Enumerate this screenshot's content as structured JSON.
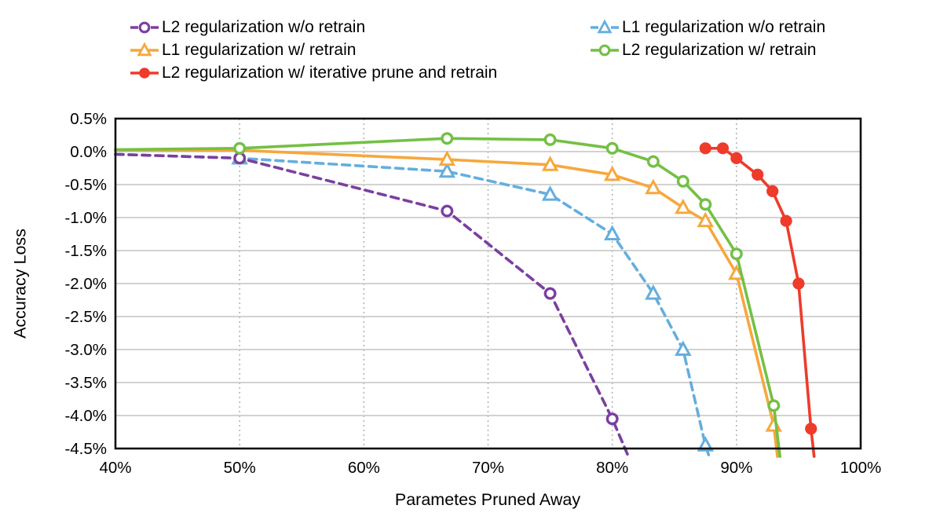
{
  "chart_data": {
    "type": "line",
    "title": "",
    "xlabel": "Parametes Pruned Away",
    "ylabel": "Accuracy Loss",
    "xlim": [
      40,
      100
    ],
    "ylim": [
      -4.5,
      0.5
    ],
    "x_ticks": [
      "40%",
      "50%",
      "60%",
      "70%",
      "80%",
      "90%",
      "100%"
    ],
    "x_tick_values": [
      40,
      50,
      60,
      70,
      80,
      90,
      100
    ],
    "y_ticks": [
      "0.5%",
      "0.0%",
      "-0.5%",
      "-1.0%",
      "-1.5%",
      "-2.0%",
      "-2.5%",
      "-3.0%",
      "-3.5%",
      "-4.0%",
      "-4.5%"
    ],
    "y_tick_values": [
      0.5,
      0.0,
      -0.5,
      -1.0,
      -1.5,
      -2.0,
      -2.5,
      -3.0,
      -3.5,
      -4.0,
      -4.5
    ],
    "grid": {
      "horizontal": "solid",
      "vertical": "dotted"
    },
    "legend_position": "top",
    "style": {
      "background": "#ffffff",
      "border_color": "#111111",
      "grid_color_horizontal": "#cbcbcb",
      "grid_color_vertical": "#b4b4b4",
      "text_color": "#000000"
    },
    "series": [
      {
        "name": "L2 regularization w/o retrain",
        "color": "#7b3fa0",
        "line_style": "dashed",
        "marker": "circle-open",
        "points": [
          [
            40,
            -0.04,
            0
          ],
          [
            50,
            -0.1,
            1
          ],
          [
            66.7,
            -0.9,
            1
          ],
          [
            75,
            -2.15,
            1
          ],
          [
            80,
            -4.05,
            1
          ],
          [
            81.3,
            -4.62,
            0
          ]
        ]
      },
      {
        "name": "L1 regularization w/o retrain",
        "color": "#64aede",
        "line_style": "dashed",
        "marker": "triangle-open",
        "points": [
          [
            40,
            -0.04,
            0
          ],
          [
            50,
            -0.1,
            1
          ],
          [
            66.7,
            -0.3,
            1
          ],
          [
            75,
            -0.65,
            1
          ],
          [
            80,
            -1.25,
            1
          ],
          [
            83.3,
            -2.15,
            1
          ],
          [
            85.7,
            -3.0,
            1
          ],
          [
            87.5,
            -4.45,
            1
          ],
          [
            87.8,
            -4.62,
            0
          ]
        ]
      },
      {
        "name": "L1 regularization w/ retrain",
        "color": "#f7a73c",
        "line_style": "solid",
        "marker": "triangle-open",
        "points": [
          [
            40,
            0.02,
            0
          ],
          [
            50,
            0.02,
            0
          ],
          [
            66.7,
            -0.12,
            1
          ],
          [
            75,
            -0.2,
            1
          ],
          [
            80,
            -0.35,
            1
          ],
          [
            83.3,
            -0.55,
            1
          ],
          [
            85.7,
            -0.85,
            1
          ],
          [
            87.5,
            -1.05,
            1
          ],
          [
            90,
            -1.85,
            1
          ],
          [
            93,
            -4.15,
            1
          ],
          [
            93.3,
            -4.62,
            0
          ]
        ]
      },
      {
        "name": "L2 regularization w/ retrain",
        "color": "#74c045",
        "line_style": "solid",
        "marker": "circle-open",
        "points": [
          [
            40,
            0.03,
            0
          ],
          [
            50,
            0.05,
            1
          ],
          [
            66.7,
            0.2,
            1
          ],
          [
            75,
            0.18,
            1
          ],
          [
            80,
            0.05,
            1
          ],
          [
            83.3,
            -0.15,
            1
          ],
          [
            85.7,
            -0.45,
            1
          ],
          [
            87.5,
            -0.8,
            1
          ],
          [
            90,
            -1.55,
            1
          ],
          [
            93,
            -3.85,
            1
          ],
          [
            93.5,
            -4.62,
            0
          ]
        ]
      },
      {
        "name": "L2 regularization w/ iterative prune and retrain",
        "color": "#ee3b2b",
        "line_style": "solid",
        "marker": "circle-filled",
        "points": [
          [
            87.5,
            0.05,
            1
          ],
          [
            88.9,
            0.05,
            1
          ],
          [
            90,
            -0.1,
            1
          ],
          [
            91.7,
            -0.35,
            1
          ],
          [
            92.9,
            -0.6,
            1
          ],
          [
            94,
            -1.05,
            1
          ],
          [
            95,
            -2.0,
            1
          ],
          [
            96,
            -4.2,
            1
          ],
          [
            96.25,
            -4.62,
            0
          ]
        ]
      }
    ]
  }
}
